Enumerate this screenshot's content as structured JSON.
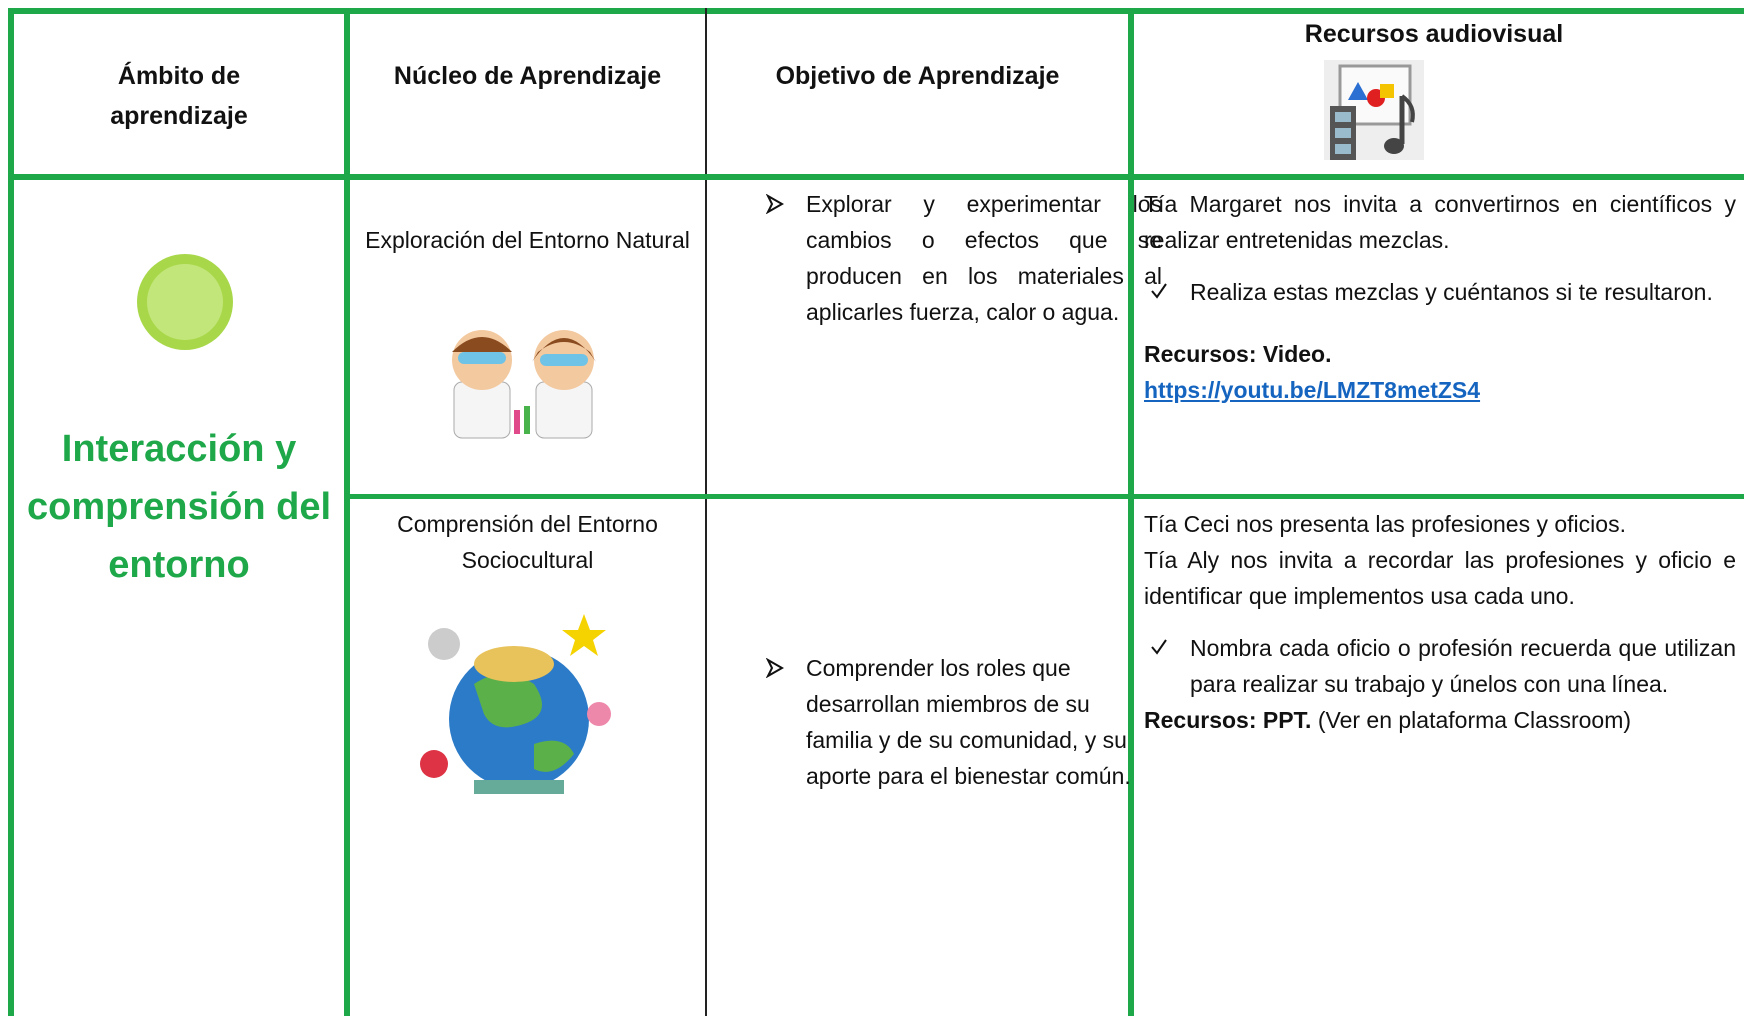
{
  "header": {
    "columns": [
      "Ámbito de aprendizaje",
      "Núcleo de Aprendizaje",
      "Objetivo de Aprendizaje",
      "Recursos audiovisual"
    ]
  },
  "ambito": "Interacción y comprensión del entorno",
  "rows": [
    {
      "nucleo": "Exploración del Entorno Natural",
      "objetivo": "Explorar y experimentar los cambios o efectos que se producen en los materiales al aplicarles fuerza, calor o agua.",
      "recursos": {
        "intro": [
          "Tía Margaret nos invita a convertirnos en científicos y realizar entretenidas mezclas."
        ],
        "task": "Realiza estas mezclas y cuéntanos si te resultaron.",
        "label": "Recursos: Video.",
        "link": "https://youtu.be/LMZT8metZS4"
      }
    },
    {
      "nucleo": "Comprensión del Entorno Sociocultural",
      "objetivo": "Comprender los roles que desarrollan miembros de su familia y de su comunidad, y su aporte para el bienestar común.",
      "recursos": {
        "intro": [
          "Tía Ceci nos presenta las profesiones y oficios.",
          "Tía Aly nos invita a recordar las profesiones y oficio e identificar que implementos usa cada uno."
        ],
        "task": "Nombra cada oficio o profesión recuerda que utilizan para realizar su trabajo y únelos con una línea.",
        "label": "Recursos: PPT.",
        "note": "(Ver en plataforma Classroom)"
      }
    }
  ]
}
